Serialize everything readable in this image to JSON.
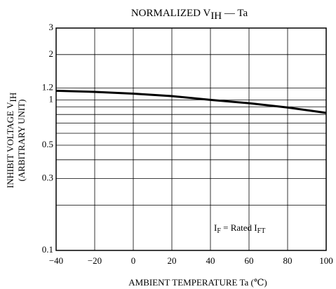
{
  "chart_data": {
    "type": "line",
    "title_parts": [
      "NORMALIZED V",
      "IH",
      " — Ta"
    ],
    "ylabel_parts": [
      "INHIBIT VOLTAGE V",
      "IH"
    ],
    "ylabel_line2": "(ARBITRARY UNIT)",
    "xlabel": "AMBIENT TEMPERATURE   Ta   (℃)",
    "annotation_parts": [
      "I",
      "F",
      " = Rated I",
      "FT"
    ],
    "x": [
      -40,
      -20,
      0,
      20,
      40,
      60,
      80,
      100
    ],
    "series": [
      {
        "name": "VIH",
        "color": "#000000",
        "values": [
          1.15,
          1.13,
          1.1,
          1.06,
          1.0,
          0.95,
          0.89,
          0.82
        ]
      }
    ],
    "xlim": [
      -40,
      100
    ],
    "xticks": [
      {
        "value": -40,
        "label": "−40"
      },
      {
        "value": -20,
        "label": "−20"
      },
      0,
      20,
      40,
      60,
      80,
      100
    ],
    "ylim": [
      0.1,
      3
    ],
    "yticks": [
      0.1,
      0.3,
      0.5,
      1,
      1.2,
      2,
      3
    ],
    "yminor": [
      0.2,
      0.4,
      0.6,
      0.7,
      0.8,
      0.9
    ],
    "ylog": true,
    "grid": true
  }
}
